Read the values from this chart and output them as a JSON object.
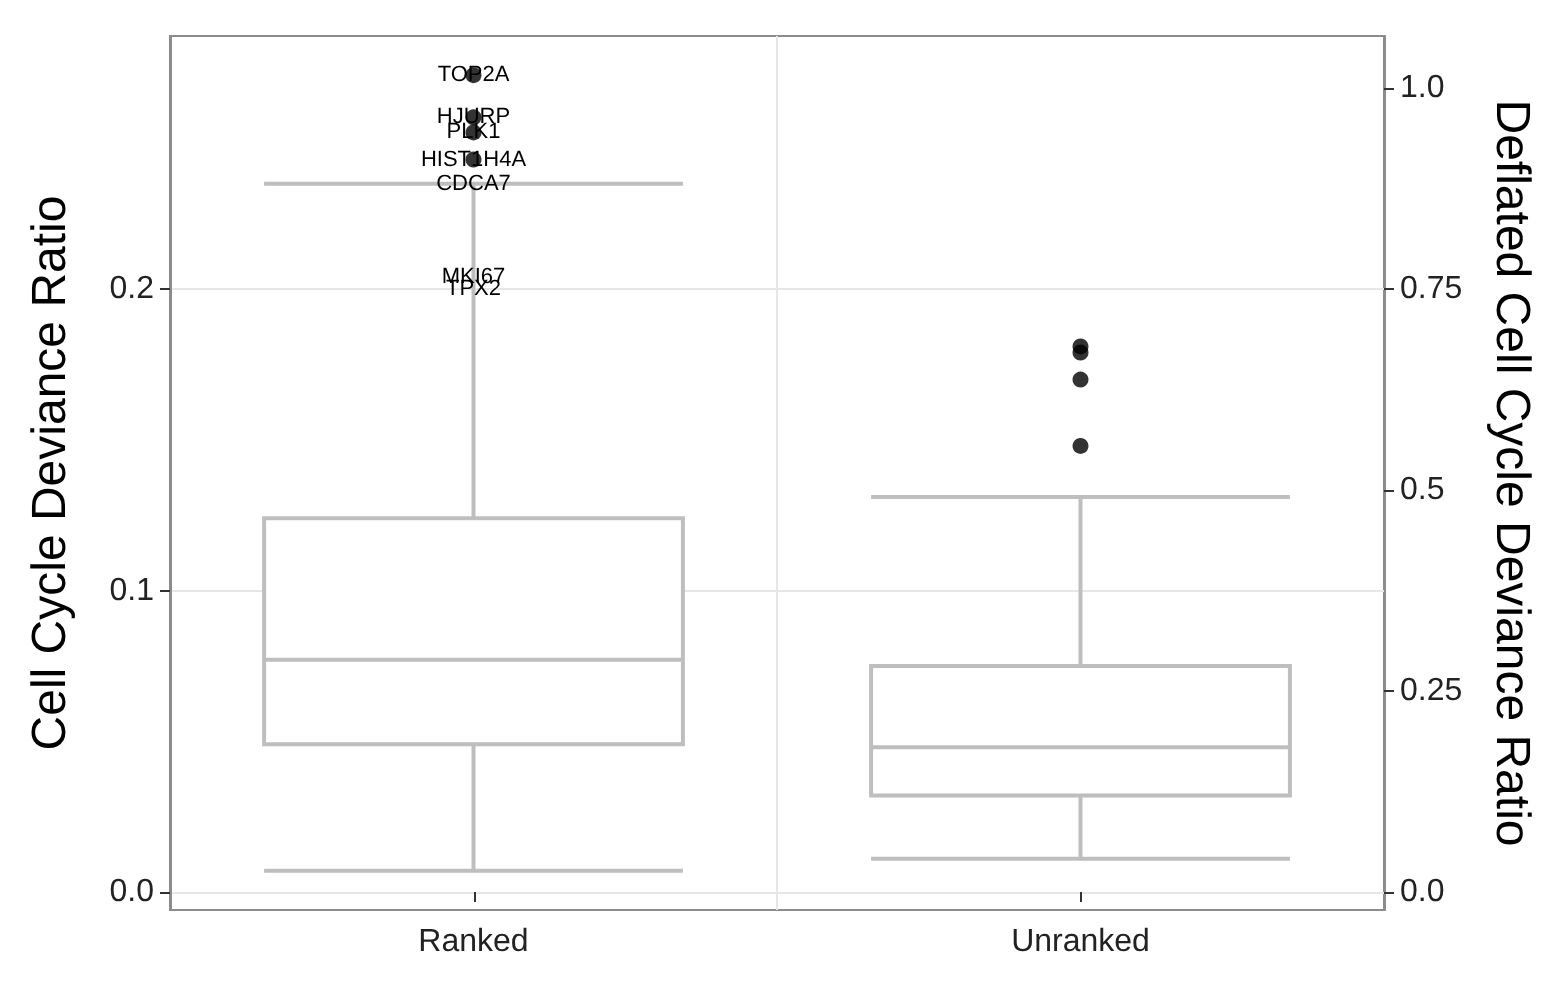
{
  "chart_data": {
    "type": "box",
    "ylabel": "Cell Cycle Deviance Ratio",
    "y2label": "Deflated Cell Cycle Deviance Ratio",
    "categories": [
      "Ranked",
      "Unranked"
    ],
    "series": [
      {
        "color": "#bebebe",
        "boxes": [
          {
            "low": 0.007,
            "q1": 0.049,
            "median": 0.077,
            "q3": 0.124,
            "high": 0.235
          },
          {
            "low": 0.011,
            "q1": 0.032,
            "median": 0.048,
            "q3": 0.075,
            "high": 0.131
          }
        ]
      },
      {
        "type": "scatter",
        "color": "#000000",
        "x": [
          "Ranked",
          "Ranked",
          "Ranked",
          "Ranked",
          "Unranked",
          "Unranked",
          "Unranked",
          "Unranked"
        ],
        "values": [
          0.271,
          0.257,
          0.252,
          0.243,
          0.181,
          0.179,
          0.17,
          0.148
        ]
      }
    ],
    "ylim": [
      -0.006,
      0.284
    ],
    "yticks": [
      {
        "value": 0,
        "label": "0.0"
      },
      0.1,
      0.2
    ],
    "y2lim": [
      -0.022,
      1.065
    ],
    "y2ticks": [
      {
        "value": 0,
        "label": "0.0"
      },
      0.25,
      {
        "value": 0.5,
        "label": "0.5"
      },
      0.75,
      {
        "value": 1,
        "label": "1.0"
      }
    ],
    "annotations": [
      {
        "text": "TOP2A",
        "x": "Ranked",
        "y": 0.271
      },
      {
        "text": "HJURP",
        "x": "Ranked",
        "y": 0.257
      },
      {
        "text": "PLK1",
        "x": "Ranked",
        "y": 0.252
      },
      {
        "text": "HIST1H4A",
        "x": "Ranked",
        "y": 0.243
      },
      {
        "text": "CDCA7",
        "x": "Ranked",
        "y": 0.235
      },
      {
        "text": "MKI67",
        "x": "Ranked",
        "y": 0.204
      },
      {
        "text": "TPX2",
        "x": "Ranked",
        "y": 0.2
      }
    ],
    "grid": true
  }
}
